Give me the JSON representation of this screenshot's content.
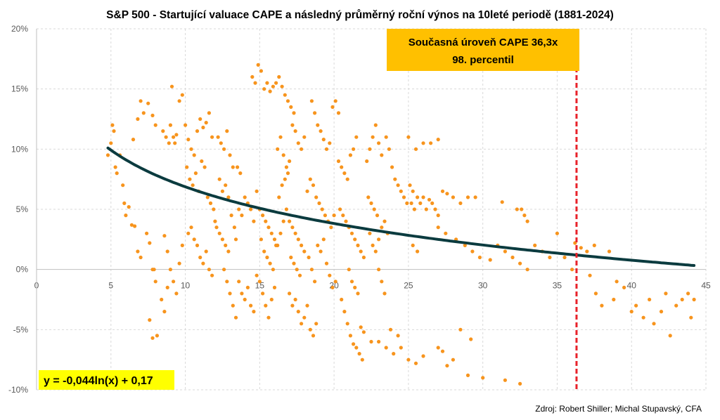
{
  "chart_data": {
    "type": "scatter",
    "title": "S&P 500 - Startující valuace CAPE a následný průměrný roční výnos na 10leté periodě (1881-2024)",
    "xlim": [
      0,
      45
    ],
    "ylim": [
      -0.1,
      0.2
    ],
    "x_ticks": [
      "0",
      "5",
      "10",
      "15",
      "20",
      "25",
      "30",
      "35",
      "40",
      "45"
    ],
    "y_ticks": [
      "-10%",
      "-5%",
      "0%",
      "5%",
      "10%",
      "15%",
      "20%"
    ],
    "grid": true,
    "points_color": "#f7941d",
    "trendline": {
      "a": -0.044,
      "b": 0.17,
      "x_range": [
        4.8,
        44.2
      ],
      "label": "y = -0,044ln(x) + 0,17",
      "color": "#0b3b3f"
    },
    "marker_line": {
      "x": 36.3,
      "color": "#e8222a"
    },
    "annotation": {
      "line1": "Současná úroveň CAPE 36,3x",
      "line2": "98. percentil",
      "color": "#ffc000"
    },
    "source": "Zdroj: Robert Shiller; Michal Stupavský, CFA",
    "points": [
      [
        4.8,
        0.095
      ],
      [
        5.0,
        0.105
      ],
      [
        5.1,
        0.12
      ],
      [
        5.2,
        0.115
      ],
      [
        5.3,
        0.085
      ],
      [
        5.4,
        0.08
      ],
      [
        5.6,
        0.095
      ],
      [
        5.8,
        0.07
      ],
      [
        5.9,
        0.055
      ],
      [
        6.0,
        0.045
      ],
      [
        6.2,
        0.052
      ],
      [
        6.4,
        0.037
      ],
      [
        6.6,
        0.036
      ],
      [
        6.8,
        0.015
      ],
      [
        7.0,
        0.01
      ],
      [
        6.5,
        0.108
      ],
      [
        6.8,
        0.125
      ],
      [
        7.0,
        0.14
      ],
      [
        7.2,
        0.13
      ],
      [
        7.5,
        0.138
      ],
      [
        7.8,
        0.128
      ],
      [
        8.0,
        0.12
      ],
      [
        7.4,
        0.03
      ],
      [
        7.6,
        0.022
      ],
      [
        7.8,
        0.0
      ],
      [
        8.0,
        -0.01
      ],
      [
        7.6,
        -0.042
      ],
      [
        7.8,
        -0.057
      ],
      [
        8.1,
        -0.055
      ],
      [
        7.9,
        0.0
      ],
      [
        8.5,
        0.115
      ],
      [
        8.7,
        0.11
      ],
      [
        8.9,
        0.105
      ],
      [
        9.0,
        0.12
      ],
      [
        9.2,
        0.11
      ],
      [
        9.4,
        0.112
      ],
      [
        9.6,
        0.14
      ],
      [
        9.8,
        0.145
      ],
      [
        9.1,
        0.152
      ],
      [
        9.3,
        0.105
      ],
      [
        8.6,
        0.028
      ],
      [
        8.8,
        0.015
      ],
      [
        9.0,
        0.0
      ],
      [
        9.2,
        -0.01
      ],
      [
        9.4,
        -0.02
      ],
      [
        8.4,
        -0.025
      ],
      [
        8.6,
        -0.035
      ],
      [
        8.8,
        -0.015
      ],
      [
        9.6,
        0.005
      ],
      [
        9.8,
        0.02
      ],
      [
        10.0,
        0.12
      ],
      [
        10.2,
        0.108
      ],
      [
        10.4,
        0.1
      ],
      [
        10.6,
        0.095
      ],
      [
        10.8,
        0.115
      ],
      [
        11.0,
        0.125
      ],
      [
        11.2,
        0.118
      ],
      [
        11.4,
        0.122
      ],
      [
        11.6,
        0.13
      ],
      [
        11.8,
        0.11
      ],
      [
        10.1,
        0.085
      ],
      [
        10.3,
        0.075
      ],
      [
        10.5,
        0.07
      ],
      [
        10.7,
        0.08
      ],
      [
        10.9,
        0.065
      ],
      [
        11.1,
        0.09
      ],
      [
        11.3,
        0.085
      ],
      [
        11.5,
        0.06
      ],
      [
        11.7,
        0.055
      ],
      [
        11.9,
        0.05
      ],
      [
        10.2,
        0.03
      ],
      [
        10.4,
        0.035
      ],
      [
        10.6,
        0.025
      ],
      [
        10.8,
        0.02
      ],
      [
        11.0,
        0.01
      ],
      [
        11.2,
        0.005
      ],
      [
        11.4,
        0.015
      ],
      [
        11.6,
        0.0
      ],
      [
        11.8,
        -0.005
      ],
      [
        12.0,
        0.04
      ],
      [
        12.2,
        0.11
      ],
      [
        12.4,
        0.105
      ],
      [
        12.6,
        0.1
      ],
      [
        12.8,
        0.115
      ],
      [
        13.0,
        0.095
      ],
      [
        13.2,
        0.085
      ],
      [
        12.3,
        0.075
      ],
      [
        12.5,
        0.065
      ],
      [
        12.7,
        0.07
      ],
      [
        12.9,
        0.06
      ],
      [
        12.1,
        0.035
      ],
      [
        12.3,
        0.03
      ],
      [
        12.5,
        0.025
      ],
      [
        12.7,
        0.02
      ],
      [
        12.9,
        0.015
      ],
      [
        13.1,
        0.045
      ],
      [
        13.3,
        0.035
      ],
      [
        12.6,
        0.0
      ],
      [
        12.8,
        -0.01
      ],
      [
        13.0,
        -0.02
      ],
      [
        13.4,
        0.025
      ],
      [
        13.6,
        0.05
      ],
      [
        13.8,
        0.045
      ],
      [
        14.0,
        0.06
      ],
      [
        14.2,
        0.055
      ],
      [
        14.4,
        0.05
      ],
      [
        14.6,
        0.04
      ],
      [
        14.8,
        0.065
      ],
      [
        13.5,
        0.085
      ],
      [
        13.7,
        0.08
      ],
      [
        13.6,
        -0.01
      ],
      [
        13.8,
        -0.02
      ],
      [
        14.0,
        -0.025
      ],
      [
        14.2,
        -0.015
      ],
      [
        14.4,
        -0.03
      ],
      [
        14.6,
        -0.035
      ],
      [
        14.8,
        -0.005
      ],
      [
        15.0,
        -0.01
      ],
      [
        15.2,
        -0.02
      ],
      [
        15.4,
        -0.03
      ],
      [
        13.2,
        -0.03
      ],
      [
        13.4,
        -0.04
      ],
      [
        15.6,
        -0.04
      ],
      [
        15.8,
        -0.025
      ],
      [
        16.0,
        -0.015
      ],
      [
        14.5,
        0.16
      ],
      [
        14.7,
        0.155
      ],
      [
        14.9,
        0.17
      ],
      [
        15.1,
        0.165
      ],
      [
        15.3,
        0.15
      ],
      [
        15.5,
        0.155
      ],
      [
        15.7,
        0.148
      ],
      [
        15.9,
        0.152
      ],
      [
        16.1,
        0.155
      ],
      [
        16.3,
        0.16
      ],
      [
        16.5,
        0.152
      ],
      [
        16.7,
        0.145
      ],
      [
        16.9,
        0.14
      ],
      [
        17.1,
        0.135
      ],
      [
        17.3,
        0.13
      ],
      [
        15.0,
        0.05
      ],
      [
        15.2,
        0.045
      ],
      [
        15.4,
        0.04
      ],
      [
        15.6,
        0.035
      ],
      [
        15.8,
        0.03
      ],
      [
        16.0,
        0.025
      ],
      [
        16.2,
        0.02
      ],
      [
        16.4,
        0.03
      ],
      [
        16.6,
        0.04
      ],
      [
        16.8,
        0.05
      ],
      [
        15.1,
        0.025
      ],
      [
        15.3,
        0.015
      ],
      [
        15.5,
        0.01
      ],
      [
        15.7,
        0.005
      ],
      [
        15.9,
        0.0
      ],
      [
        16.1,
        0.02
      ],
      [
        16.3,
        0.06
      ],
      [
        16.5,
        0.07
      ],
      [
        16.7,
        0.075
      ],
      [
        16.9,
        0.08
      ],
      [
        16.2,
        0.1
      ],
      [
        16.4,
        0.11
      ],
      [
        16.6,
        0.095
      ],
      [
        16.8,
        0.085
      ],
      [
        17.0,
        0.09
      ],
      [
        17.2,
        0.12
      ],
      [
        17.4,
        0.115
      ],
      [
        17.6,
        0.105
      ],
      [
        17.8,
        0.1
      ],
      [
        18.0,
        0.11
      ],
      [
        17.0,
        0.04
      ],
      [
        17.2,
        0.035
      ],
      [
        17.4,
        0.03
      ],
      [
        17.6,
        0.025
      ],
      [
        17.8,
        0.02
      ],
      [
        18.0,
        0.015
      ],
      [
        17.1,
        0.01
      ],
      [
        17.3,
        0.005
      ],
      [
        17.5,
        0.0
      ],
      [
        17.7,
        -0.005
      ],
      [
        17.0,
        -0.02
      ],
      [
        17.2,
        -0.03
      ],
      [
        17.4,
        -0.025
      ],
      [
        17.6,
        -0.035
      ],
      [
        17.8,
        -0.045
      ],
      [
        18.0,
        -0.04
      ],
      [
        18.2,
        -0.03
      ],
      [
        18.4,
        -0.05
      ],
      [
        18.6,
        -0.055
      ],
      [
        18.8,
        -0.045
      ],
      [
        18.2,
        0.065
      ],
      [
        18.4,
        0.075
      ],
      [
        18.6,
        0.07
      ],
      [
        18.8,
        0.06
      ],
      [
        19.0,
        0.055
      ],
      [
        19.2,
        0.05
      ],
      [
        19.4,
        0.045
      ],
      [
        19.6,
        0.04
      ],
      [
        19.8,
        0.035
      ],
      [
        20.0,
        0.045
      ],
      [
        18.5,
        0.14
      ],
      [
        18.7,
        0.13
      ],
      [
        18.9,
        0.12
      ],
      [
        19.1,
        0.115
      ],
      [
        19.3,
        0.108
      ],
      [
        19.5,
        0.1
      ],
      [
        19.7,
        0.105
      ],
      [
        19.9,
        0.135
      ],
      [
        20.1,
        0.14
      ],
      [
        20.3,
        0.13
      ],
      [
        18.3,
        0.01
      ],
      [
        18.5,
        0.0
      ],
      [
        18.7,
        -0.01
      ],
      [
        18.9,
        0.02
      ],
      [
        19.1,
        0.015
      ],
      [
        19.3,
        0.025
      ],
      [
        19.5,
        0.005
      ],
      [
        19.7,
        -0.005
      ],
      [
        19.9,
        -0.015
      ],
      [
        20.1,
        -0.01
      ],
      [
        20.3,
        0.09
      ],
      [
        20.5,
        0.085
      ],
      [
        20.7,
        0.08
      ],
      [
        20.9,
        0.075
      ],
      [
        21.1,
        0.095
      ],
      [
        21.3,
        0.1
      ],
      [
        21.5,
        0.11
      ],
      [
        20.4,
        0.05
      ],
      [
        20.6,
        0.045
      ],
      [
        20.8,
        0.04
      ],
      [
        21.0,
        0.035
      ],
      [
        21.2,
        0.03
      ],
      [
        21.4,
        0.025
      ],
      [
        21.6,
        0.02
      ],
      [
        21.8,
        0.015
      ],
      [
        22.0,
        0.01
      ],
      [
        21.0,
        0.0
      ],
      [
        21.2,
        -0.01
      ],
      [
        21.4,
        -0.015
      ],
      [
        21.6,
        -0.02
      ],
      [
        20.5,
        -0.025
      ],
      [
        20.7,
        -0.035
      ],
      [
        20.9,
        -0.045
      ],
      [
        21.1,
        -0.055
      ],
      [
        21.3,
        -0.062
      ],
      [
        21.5,
        -0.065
      ],
      [
        21.7,
        -0.07
      ],
      [
        21.9,
        -0.075
      ],
      [
        21.8,
        -0.048
      ],
      [
        22.0,
        -0.052
      ],
      [
        22.2,
        0.09
      ],
      [
        22.4,
        0.1
      ],
      [
        22.6,
        0.11
      ],
      [
        22.8,
        0.12
      ],
      [
        23.0,
        0.105
      ],
      [
        23.2,
        0.095
      ],
      [
        22.3,
        0.06
      ],
      [
        22.5,
        0.055
      ],
      [
        22.7,
        0.05
      ],
      [
        22.9,
        0.045
      ],
      [
        22.4,
        0.03
      ],
      [
        22.6,
        0.02
      ],
      [
        22.8,
        0.015
      ],
      [
        23.0,
        0.025
      ],
      [
        23.2,
        0.035
      ],
      [
        23.4,
        0.04
      ],
      [
        23.6,
        0.03
      ],
      [
        23.0,
        0.0
      ],
      [
        23.2,
        -0.01
      ],
      [
        23.4,
        -0.02
      ],
      [
        23.5,
        0.11
      ],
      [
        23.7,
        0.1
      ],
      [
        23.9,
        0.085
      ],
      [
        24.1,
        0.075
      ],
      [
        24.3,
        0.07
      ],
      [
        24.5,
        0.065
      ],
      [
        24.7,
        0.06
      ],
      [
        24.9,
        0.055
      ],
      [
        25.1,
        0.07
      ],
      [
        25.3,
        0.065
      ],
      [
        22.5,
        -0.06
      ],
      [
        23.0,
        -0.06
      ],
      [
        23.5,
        -0.065
      ],
      [
        24.0,
        -0.07
      ],
      [
        24.5,
        -0.065
      ],
      [
        25.0,
        -0.075
      ],
      [
        25.5,
        -0.078
      ],
      [
        26.0,
        -0.072
      ],
      [
        23.8,
        -0.05
      ],
      [
        24.3,
        -0.055
      ],
      [
        25.2,
        0.055
      ],
      [
        25.4,
        0.05
      ],
      [
        25.6,
        0.06
      ],
      [
        25.8,
        0.055
      ],
      [
        26.0,
        0.06
      ],
      [
        26.2,
        0.05
      ],
      [
        26.4,
        0.058
      ],
      [
        26.6,
        0.055
      ],
      [
        26.8,
        0.05
      ],
      [
        27.0,
        0.045
      ],
      [
        25.0,
        0.11
      ],
      [
        25.5,
        0.1
      ],
      [
        26.0,
        0.105
      ],
      [
        26.5,
        0.105
      ],
      [
        27.0,
        0.108
      ],
      [
        25.3,
        0.02
      ],
      [
        25.6,
        0.015
      ],
      [
        27.3,
        0.065
      ],
      [
        27.6,
        0.063
      ],
      [
        28.0,
        0.06
      ],
      [
        28.5,
        0.055
      ],
      [
        29.0,
        0.06
      ],
      [
        29.5,
        0.06
      ],
      [
        27.0,
        0.035
      ],
      [
        27.5,
        0.03
      ],
      [
        28.2,
        0.025
      ],
      [
        28.8,
        0.02
      ],
      [
        29.3,
        0.015
      ],
      [
        29.8,
        0.01
      ],
      [
        30.5,
        0.008
      ],
      [
        27.0,
        -0.065
      ],
      [
        27.3,
        -0.068
      ],
      [
        27.6,
        -0.08
      ],
      [
        28.0,
        -0.075
      ],
      [
        29.0,
        -0.088
      ],
      [
        30.0,
        -0.09
      ],
      [
        31.5,
        -0.092
      ],
      [
        32.5,
        -0.095
      ],
      [
        28.5,
        -0.05
      ],
      [
        29.2,
        -0.058
      ],
      [
        31.0,
        0.02
      ],
      [
        31.5,
        0.015
      ],
      [
        32.0,
        0.01
      ],
      [
        32.5,
        0.005
      ],
      [
        33.0,
        0.0
      ],
      [
        31.3,
        0.056
      ],
      [
        32.3,
        0.05
      ],
      [
        32.6,
        0.05
      ],
      [
        32.8,
        0.045
      ],
      [
        33.0,
        0.04
      ],
      [
        33.5,
        0.02
      ],
      [
        34.0,
        0.015
      ],
      [
        34.5,
        0.01
      ],
      [
        35.0,
        0.03
      ],
      [
        35.5,
        0.01
      ],
      [
        36.0,
        0.0
      ],
      [
        36.2,
        0.022
      ],
      [
        36.6,
        0.018
      ],
      [
        37.0,
        0.015
      ],
      [
        37.5,
        0.02
      ],
      [
        37.2,
        -0.005
      ],
      [
        37.6,
        -0.02
      ],
      [
        38.0,
        -0.03
      ],
      [
        38.5,
        0.015
      ],
      [
        39.0,
        -0.01
      ],
      [
        38.8,
        -0.025
      ],
      [
        40.0,
        -0.035
      ],
      [
        40.3,
        -0.03
      ],
      [
        40.8,
        -0.04
      ],
      [
        41.2,
        -0.025
      ],
      [
        41.5,
        -0.045
      ],
      [
        42.0,
        -0.035
      ],
      [
        42.3,
        -0.02
      ],
      [
        42.6,
        -0.055
      ],
      [
        43.0,
        -0.03
      ],
      [
        43.4,
        -0.025
      ],
      [
        43.8,
        -0.02
      ],
      [
        44.0,
        -0.04
      ],
      [
        44.2,
        -0.025
      ],
      [
        39.5,
        -0.015
      ]
    ]
  }
}
